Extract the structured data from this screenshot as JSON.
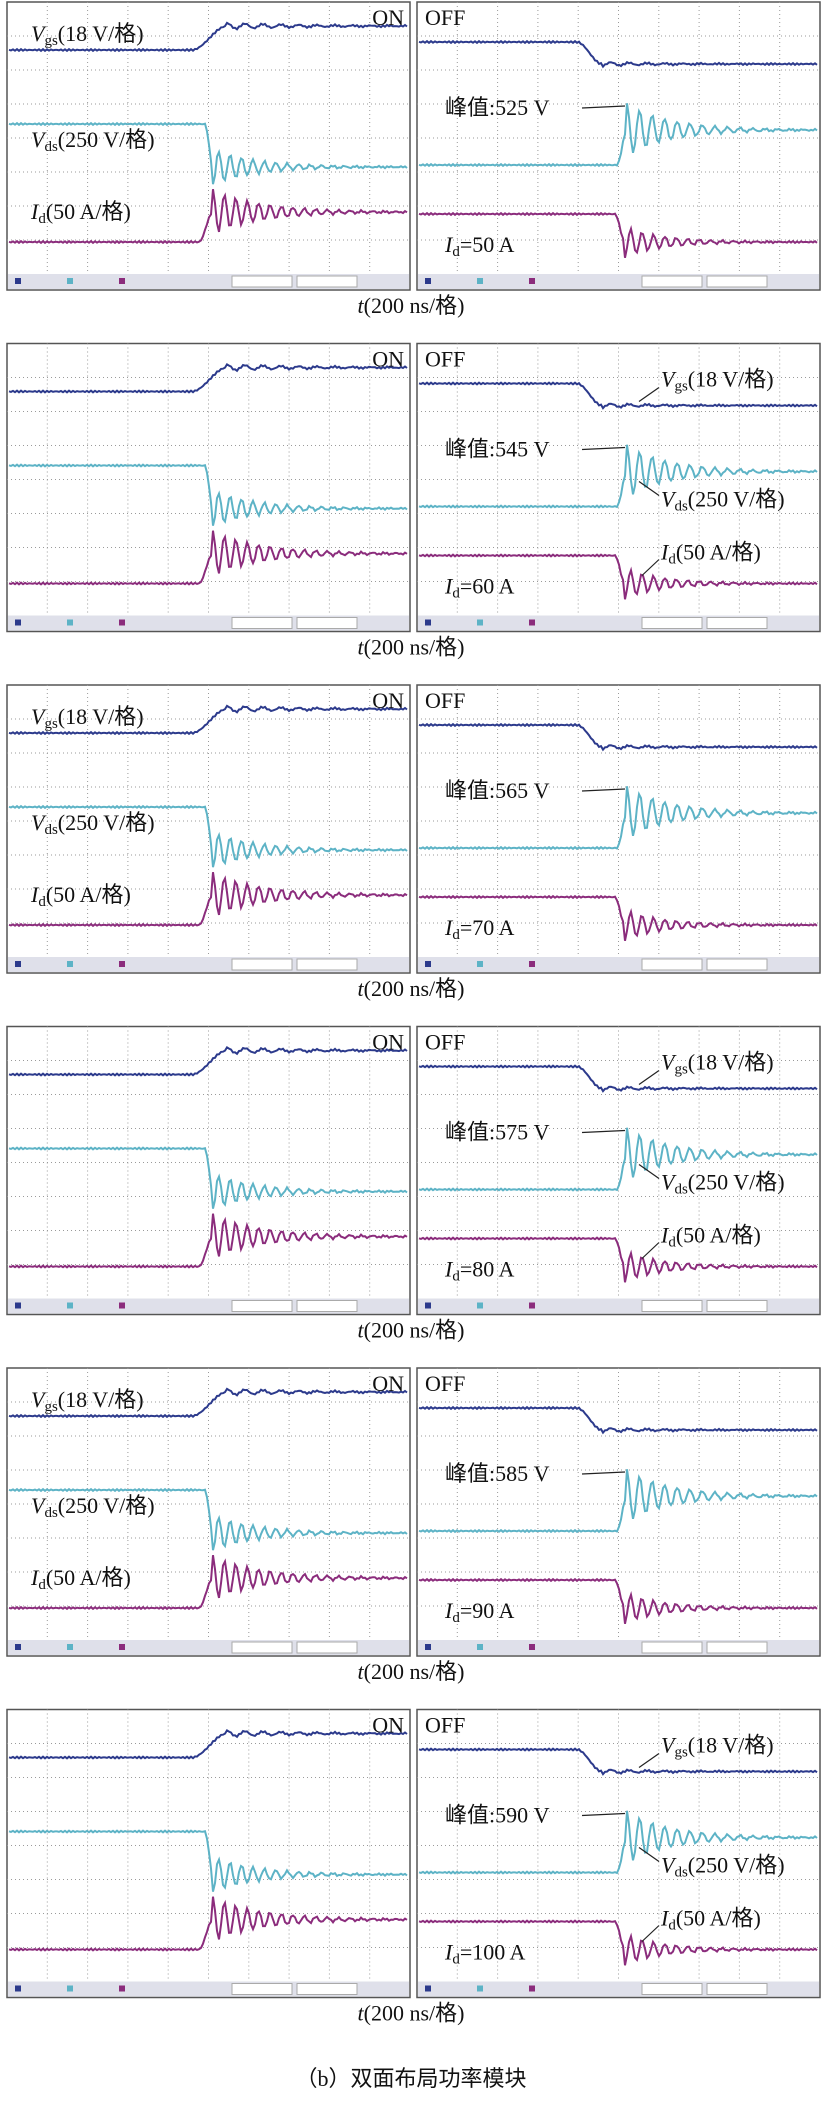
{
  "rows": [
    {
      "on": {
        "badge": "ON",
        "vgs": {
          "var": "V",
          "sub": "gs",
          "rest": "(18 V/格)"
        },
        "vds": {
          "var": "V",
          "sub": "ds",
          "rest": "(250 V/格)"
        },
        "id": {
          "var": "I",
          "sub": "d",
          "rest": "(50 A/格)"
        }
      },
      "off": {
        "badge": "OFF",
        "peak": "峰值:525 V",
        "current": {
          "var": "I",
          "sub": "d",
          "rest": "=50 A"
        }
      },
      "time": {
        "var": "t",
        "rest": "(200 ns/格)"
      }
    },
    {
      "on": {
        "badge": "ON"
      },
      "off": {
        "badge": "OFF",
        "vgs": {
          "var": "V",
          "sub": "gs",
          "rest": "(18 V/格)"
        },
        "peak": "峰值:545 V",
        "vds": {
          "var": "V",
          "sub": "ds",
          "rest": "(250 V/格)"
        },
        "id": {
          "var": "I",
          "sub": "d",
          "rest": "(50 A/格)"
        },
        "current": {
          "var": "I",
          "sub": "d",
          "rest": "=60 A"
        }
      },
      "time": {
        "var": "t",
        "rest": "(200 ns/格)"
      }
    },
    {
      "on": {
        "badge": "ON",
        "vgs": {
          "var": "V",
          "sub": "gs",
          "rest": "(18 V/格)"
        },
        "vds": {
          "var": "V",
          "sub": "ds",
          "rest": "(250 V/格)"
        },
        "id": {
          "var": "I",
          "sub": "d",
          "rest": "(50 A/格)"
        }
      },
      "off": {
        "badge": "OFF",
        "peak": "峰值:565 V",
        "current": {
          "var": "I",
          "sub": "d",
          "rest": "=70 A"
        }
      },
      "time": {
        "var": "t",
        "rest": "(200 ns/格)"
      }
    },
    {
      "on": {
        "badge": "ON"
      },
      "off": {
        "badge": "OFF",
        "vgs": {
          "var": "V",
          "sub": "gs",
          "rest": "(18 V/格)"
        },
        "peak": "峰值:575 V",
        "vds": {
          "var": "V",
          "sub": "ds",
          "rest": "(250 V/格)"
        },
        "id": {
          "var": "I",
          "sub": "d",
          "rest": "(50 A/格)"
        },
        "current": {
          "var": "I",
          "sub": "d",
          "rest": "=80 A"
        }
      },
      "time": {
        "var": "t",
        "rest": "(200 ns/格)"
      }
    },
    {
      "on": {
        "badge": "ON",
        "vgs": {
          "var": "V",
          "sub": "gs",
          "rest": "(18 V/格)"
        },
        "vds": {
          "var": "V",
          "sub": "ds",
          "rest": "(250 V/格)"
        },
        "id": {
          "var": "I",
          "sub": "d",
          "rest": "(50 A/格)"
        }
      },
      "off": {
        "badge": "OFF",
        "peak": "峰值:585 V",
        "current": {
          "var": "I",
          "sub": "d",
          "rest": "=90 A"
        }
      },
      "time": {
        "var": "t",
        "rest": "(200 ns/格)"
      }
    },
    {
      "on": {
        "badge": "ON"
      },
      "off": {
        "badge": "OFF",
        "vgs": {
          "var": "V",
          "sub": "gs",
          "rest": "(18 V/格)"
        },
        "peak": "峰值:590 V",
        "vds": {
          "var": "V",
          "sub": "ds",
          "rest": "(250 V/格)"
        },
        "id": {
          "var": "I",
          "sub": "d",
          "rest": "(50 A/格)"
        },
        "current": {
          "var": "I",
          "sub": "d",
          "rest": "=100 A"
        }
      },
      "time": {
        "var": "t",
        "rest": "(200 ns/格)"
      }
    }
  ],
  "caption": "（b）双面布局功率模块"
}
